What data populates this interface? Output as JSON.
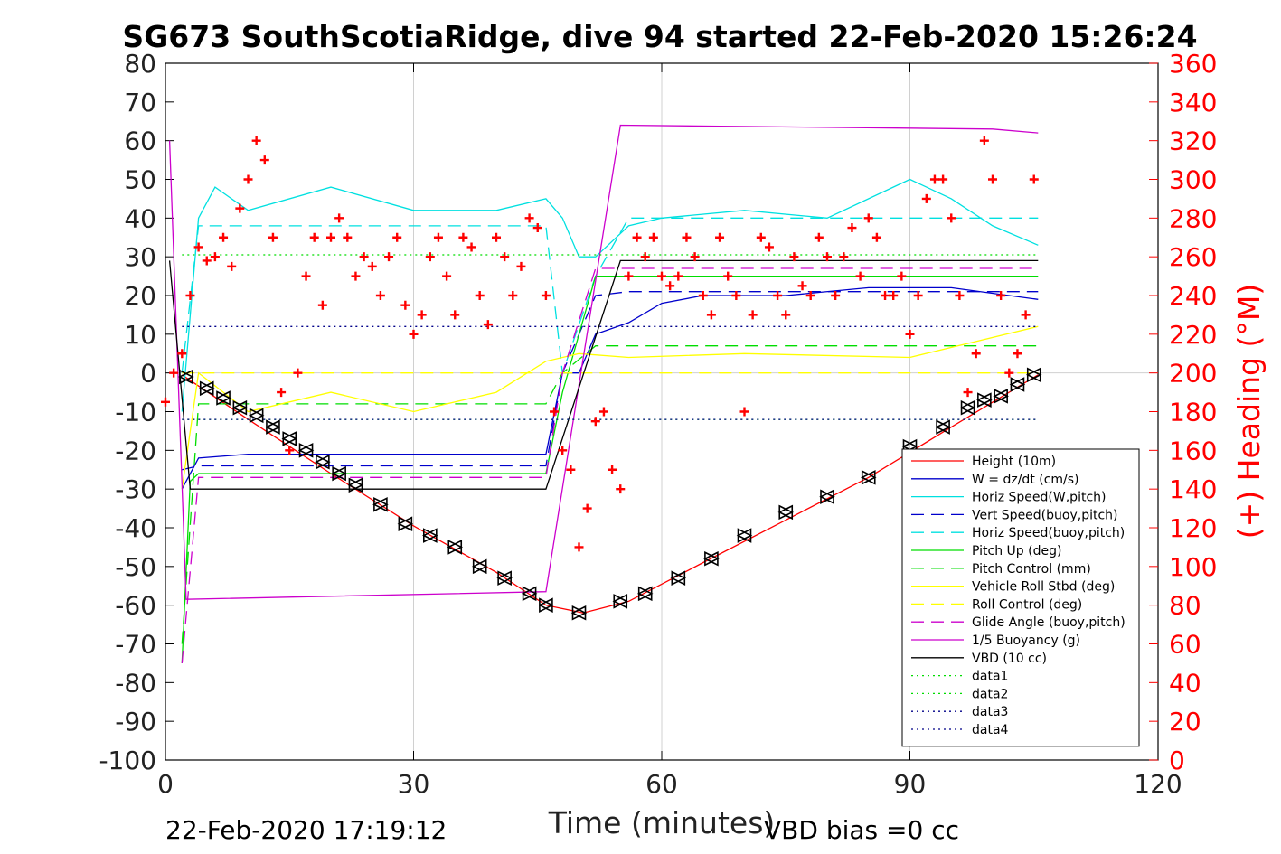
{
  "chart_data": {
    "type": "line",
    "title": "SG673 SouthScotiaRidge, dive 94 started 22-Feb-2020 15:26:24",
    "xlabel": "Time (minutes)",
    "ylabel": "",
    "y2label": "(+) Heading (°M)",
    "xlim": [
      0,
      120
    ],
    "ylim": [
      -100,
      80
    ],
    "y2lim": [
      0,
      360
    ],
    "xticks": [
      "0",
      "30",
      "60",
      "90",
      "120"
    ],
    "yticks": [
      "80",
      "70",
      "60",
      "50",
      "40",
      "30",
      "20",
      "10",
      "0",
      "-10",
      "-20",
      "-30",
      "-40",
      "-50",
      "-60",
      "-70",
      "-80",
      "-90",
      "-100"
    ],
    "y2ticks": [
      "360",
      "340",
      "320",
      "300",
      "280",
      "260",
      "240",
      "220",
      "200",
      "180",
      "160",
      "140",
      "120",
      "100",
      "80",
      "60",
      "40",
      "20",
      "0"
    ],
    "footer_left": "22-Feb-2020 17:19:12",
    "footer_right": "VBD bias =0 cc",
    "legend_position": "bottom-right",
    "series": [
      {
        "name": "Height (10m)",
        "color": "#ff0000",
        "style": "solid",
        "x": [
          2,
          10,
          20,
          30,
          40,
          46,
          50.5,
          56,
          65,
          75,
          85,
          95,
          105.5
        ],
        "y": [
          -0.5,
          -12,
          -26,
          -39.5,
          -51.5,
          -60,
          -62,
          -59,
          -49,
          -38,
          -27,
          -14,
          -0.5
        ]
      },
      {
        "name": "W = dz/dt (cm/s)",
        "color": "#0000cc",
        "style": "solid",
        "x": [
          2,
          4,
          10,
          20,
          30,
          40,
          46,
          48,
          50,
          52,
          56,
          60,
          65,
          75,
          85,
          95,
          105.5
        ],
        "y": [
          -30,
          -22,
          -21,
          -21,
          -21,
          -21,
          -21,
          0,
          0,
          10,
          13,
          18,
          20,
          20,
          22,
          22,
          19
        ]
      },
      {
        "name": "Horiz Speed(W,pitch)",
        "color": "#00e0e0",
        "style": "solid",
        "x": [
          2,
          4,
          6,
          10,
          20,
          30,
          40,
          46,
          48,
          50,
          52,
          56,
          60,
          70,
          80,
          90,
          95,
          100,
          105.5
        ],
        "y": [
          -10,
          40,
          48,
          42,
          48,
          42,
          42,
          45,
          40,
          30,
          30,
          38,
          40,
          42,
          40,
          50,
          45,
          38,
          33
        ]
      },
      {
        "name": "Vert Speed(buoy,pitch)",
        "color": "#0000cc",
        "style": "dashed",
        "x": [
          2,
          4,
          10,
          30,
          46,
          48,
          52,
          56,
          105.5
        ],
        "y": [
          -25,
          -24,
          -24,
          -24,
          -24,
          0,
          20,
          21,
          21
        ]
      },
      {
        "name": "Horiz Speed(buoy,pitch)",
        "color": "#00e0e0",
        "style": "dashed",
        "x": [
          2,
          4,
          10,
          30,
          46,
          48,
          52,
          56,
          105.5
        ],
        "y": [
          0,
          38,
          38,
          38,
          38,
          0,
          25,
          40,
          40
        ]
      },
      {
        "name": "Pitch Up (deg)",
        "color": "#00dd00",
        "style": "solid",
        "x": [
          2,
          3,
          4,
          10,
          30,
          46,
          48,
          52,
          56,
          105.5
        ],
        "y": [
          -75,
          -28,
          -26,
          -26,
          -26,
          -26,
          -5,
          25,
          25,
          25
        ]
      },
      {
        "name": "Pitch Control (mm)",
        "color": "#00dd00",
        "style": "dashed",
        "x": [
          2,
          4,
          46,
          48,
          52,
          105.5
        ],
        "y": [
          -70,
          -8,
          -8,
          0,
          7,
          7
        ]
      },
      {
        "name": "Vehicle Roll Stbd (deg)",
        "color": "#ffff00",
        "style": "solid",
        "x": [
          2,
          4,
          10,
          20,
          30,
          40,
          46,
          50,
          56,
          70,
          90,
          105.5
        ],
        "y": [
          -30,
          0,
          -10,
          -5,
          -10,
          -5,
          3,
          5,
          4,
          5,
          4,
          12
        ]
      },
      {
        "name": "Roll Control (deg)",
        "color": "#ffff00",
        "style": "dashed",
        "x": [
          2,
          46,
          48,
          105.5
        ],
        "y": [
          0,
          0,
          0,
          0
        ]
      },
      {
        "name": "Glide Angle (buoy,pitch)",
        "color": "#cc00cc",
        "style": "dashed",
        "x": [
          2,
          4,
          46,
          48,
          52,
          105.5
        ],
        "y": [
          -75,
          -27,
          -27,
          0,
          27,
          27
        ]
      },
      {
        "name": "1/5 Buoyancy (g)",
        "color": "#cc00cc",
        "style": "solid",
        "x": [
          0.5,
          2.5,
          46,
          55,
          100,
          105.5
        ],
        "y": [
          60,
          -58.5,
          -56.5,
          64,
          63,
          62
        ]
      },
      {
        "name": "VBD (10 cc)",
        "color": "#000000",
        "style": "solid",
        "x": [
          0.5,
          3,
          46,
          55,
          105.5
        ],
        "y": [
          29,
          -30,
          -30,
          29,
          29
        ]
      },
      {
        "name": "data1",
        "color": "#00dd00",
        "style": "dotted",
        "x": [
          2,
          105.5
        ],
        "y": [
          30.5,
          30.5
        ]
      },
      {
        "name": "data2",
        "color": "#00dd00",
        "style": "dotted",
        "x": [
          2,
          105.5
        ],
        "y": [
          -12,
          -12
        ]
      },
      {
        "name": "data3",
        "color": "#000088",
        "style": "dotted",
        "x": [
          2,
          105.5
        ],
        "y": [
          12,
          12
        ]
      },
      {
        "name": "data4",
        "color": "#000088",
        "style": "dotted",
        "x": [
          2,
          105.5
        ],
        "y": [
          -12,
          -12
        ]
      }
    ],
    "heading": {
      "name": "(+) Heading (°M)",
      "color": "#ff0000",
      "marker": "+",
      "x": [
        0,
        1,
        2,
        3,
        4,
        5,
        6,
        7,
        8,
        9,
        10,
        11,
        12,
        13,
        14,
        15,
        16,
        17,
        18,
        19,
        20,
        21,
        22,
        23,
        24,
        25,
        26,
        27,
        28,
        29,
        30,
        31,
        32,
        33,
        34,
        35,
        36,
        37,
        38,
        39,
        40,
        41,
        42,
        43,
        44,
        45,
        46,
        47,
        48,
        49,
        50,
        51,
        52,
        53,
        54,
        55,
        56,
        57,
        58,
        59,
        60,
        61,
        62,
        63,
        64,
        65,
        66,
        67,
        68,
        69,
        70,
        71,
        72,
        73,
        74,
        75,
        76,
        77,
        78,
        79,
        80,
        81,
        82,
        83,
        84,
        85,
        86,
        87,
        88,
        89,
        90,
        91,
        92,
        93,
        94,
        95,
        96,
        97,
        98,
        99,
        100,
        101,
        102,
        103,
        104,
        105
      ],
      "y": [
        185,
        200,
        210,
        240,
        265,
        258,
        260,
        270,
        255,
        285,
        300,
        320,
        310,
        270,
        190,
        160,
        200,
        250,
        270,
        235,
        270,
        280,
        270,
        250,
        260,
        255,
        240,
        260,
        270,
        235,
        220,
        230,
        260,
        270,
        250,
        230,
        270,
        265,
        240,
        225,
        270,
        260,
        240,
        255,
        280,
        275,
        240,
        180,
        160,
        150,
        110,
        130,
        175,
        180,
        150,
        140,
        250,
        270,
        260,
        270,
        250,
        245,
        250,
        270,
        260,
        240,
        230,
        270,
        250,
        240,
        180,
        230,
        270,
        265,
        240,
        230,
        260,
        245,
        240,
        270,
        260,
        240,
        260,
        275,
        250,
        280,
        270,
        240,
        240,
        250,
        220,
        240,
        290,
        300,
        300,
        280,
        240,
        190,
        210,
        320,
        300,
        240,
        200,
        210,
        230,
        300
      ]
    },
    "markers": {
      "name": "Height markers",
      "color": "#000000",
      "x": [
        2.5,
        5,
        7,
        9,
        11,
        13,
        15,
        17,
        19,
        21,
        23,
        26,
        29,
        32,
        35,
        38,
        41,
        44,
        46,
        50,
        55,
        58,
        62,
        66,
        70,
        75,
        80,
        85,
        90,
        94,
        97,
        99,
        101,
        103,
        105
      ],
      "y": [
        -1,
        -4,
        -6.5,
        -9,
        -11,
        -14,
        -17,
        -20,
        -23,
        -26,
        -29,
        -34,
        -39,
        -42,
        -45,
        -50,
        -53,
        -57,
        -60,
        -62,
        -59,
        -57,
        -53,
        -48,
        -42,
        -36,
        -32,
        -27,
        -19,
        -14,
        -9,
        -7,
        -6,
        -3,
        -0.5
      ]
    }
  }
}
